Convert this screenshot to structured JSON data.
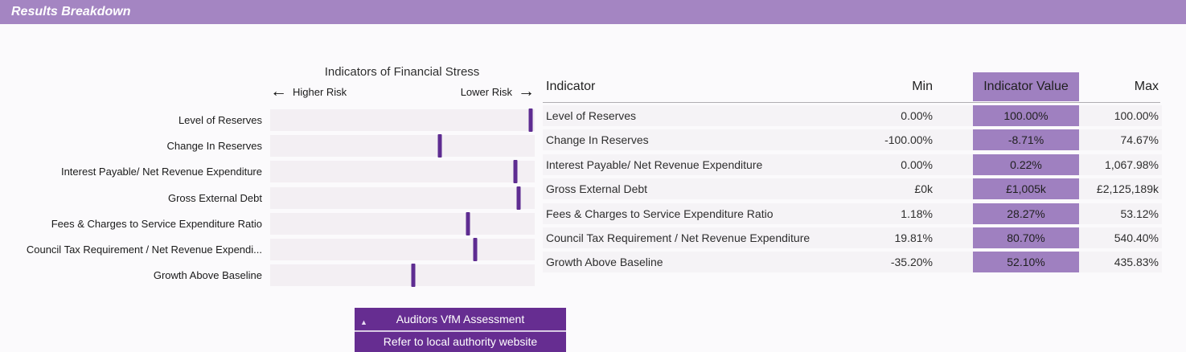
{
  "header": {
    "title": "Results Breakdown"
  },
  "chart": {
    "title": "Indicators of Financial Stress",
    "left_arrow": "←",
    "right_arrow": "→",
    "higher_risk_label": "Higher Risk",
    "lower_risk_label": "Lower Risk"
  },
  "chart_data": {
    "type": "scatter",
    "title": "Indicators of Financial Stress",
    "axis_note": "horizontal position between Min (Higher Risk, left) and Max (Lower Risk, right)",
    "categories": [
      "Level of Reserves",
      "Change In Reserves",
      "Interest Payable/ Net Revenue Expenditure",
      "Gross External Debt",
      "Fees & Charges to Service Expenditure Ratio",
      "Council Tax Requirement / Net Revenue Expendi...",
      "Growth Above Baseline"
    ],
    "marker_position_pct": [
      98.6,
      64.1,
      92.7,
      93.9,
      74.8,
      77.5,
      54.1
    ],
    "values": [
      "100.00%",
      "-8.71%",
      "0.22%",
      "£1,005k",
      "28.27%",
      "80.70%",
      "52.10%"
    ],
    "mins": [
      "0.00%",
      "-100.00%",
      "0.00%",
      "£0k",
      "1.18%",
      "19.81%",
      "-35.20%"
    ],
    "maxes": [
      "100.00%",
      "74.67%",
      "1,067.98%",
      "£2,125,189k",
      "53.12%",
      "540.40%",
      "435.83%"
    ]
  },
  "table": {
    "columns": {
      "indicator": "Indicator",
      "min": "Min",
      "value": "Indicator Value",
      "max": "Max"
    },
    "rows": [
      {
        "indicator": "Level of Reserves",
        "min": "0.00%",
        "value": "100.00%",
        "max": "100.00%"
      },
      {
        "indicator": "Change In Reserves",
        "min": "-100.00%",
        "value": "-8.71%",
        "max": "74.67%"
      },
      {
        "indicator": "Interest Payable/ Net Revenue Expenditure",
        "min": "0.00%",
        "value": "0.22%",
        "max": "1,067.98%"
      },
      {
        "indicator": "Gross External Debt",
        "min": "£0k",
        "value": "£1,005k",
        "max": "£2,125,189k"
      },
      {
        "indicator": "Fees & Charges to Service Expenditure Ratio",
        "min": "1.18%",
        "value": "28.27%",
        "max": "53.12%"
      },
      {
        "indicator": "Council Tax Requirement / Net Revenue Expenditure",
        "min": "19.81%",
        "value": "80.70%",
        "max": "540.40%"
      },
      {
        "indicator": "Growth Above Baseline",
        "min": "-35.20%",
        "value": "52.10%",
        "max": "435.83%"
      }
    ]
  },
  "footer": {
    "collapse_icon": "▲",
    "assessment_label": "Auditors VfM Assessment",
    "link_label": "Refer to local authority website"
  },
  "colors": {
    "header_bar": "#a485c2",
    "value_column": "#9f80c0",
    "marker": "#5e2c91",
    "strip": "#f3eff3",
    "row_bg": "#f5f3f6",
    "button": "#662d91"
  }
}
